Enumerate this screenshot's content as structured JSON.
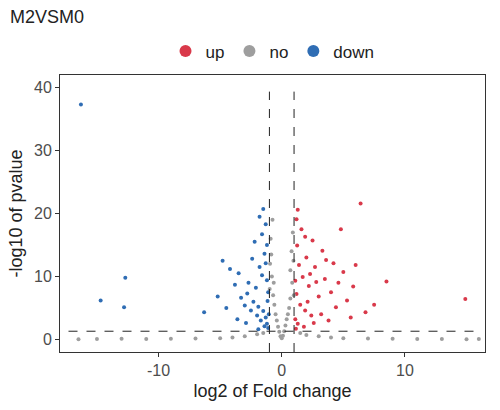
{
  "chart_data": {
    "type": "scatter",
    "title": "M2VSM0",
    "x_label": "log2 of Fold change",
    "y_label": "-log10 of pvalue",
    "xlim": [
      -18,
      16.5
    ],
    "ylim": [
      -2,
      42
    ],
    "xticks": [
      -10,
      0,
      10
    ],
    "yticks": [
      0,
      10,
      20,
      30,
      40
    ],
    "grid": false,
    "legend": "top",
    "marker": "circle",
    "thresholds": {
      "x": [
        -1,
        1
      ],
      "y": 1.3
    },
    "series": [
      {
        "name": "up",
        "color": "#d9394a",
        "x": [
          14.9,
          6.4,
          4.8,
          8.5,
          6.8,
          5.8,
          5.0,
          4.2,
          3.3,
          2.5,
          1.3,
          1.6,
          1.2,
          2.0,
          2.7,
          3.5,
          4.0,
          3.0,
          2.2,
          1.7,
          1.4,
          1.2,
          1.5,
          1.9,
          2.4,
          3.2,
          4.4,
          5.3,
          1.1,
          1.3,
          1.8,
          2.6,
          3.8,
          1.15,
          2.1,
          2.8,
          3.6,
          7.5,
          5.6,
          6.0,
          1.25,
          1.9,
          1.1,
          4.6,
          2.3
        ],
        "y": [
          6.4,
          21.6,
          17.5,
          9.2,
          4.3,
          8.4,
          10.7,
          12.1,
          14.1,
          15.7,
          20.6,
          17.5,
          19.1,
          13.0,
          11.5,
          9.6,
          7.5,
          6.8,
          8.5,
          9.9,
          11.8,
          7.2,
          5.5,
          4.6,
          3.8,
          4.0,
          5.1,
          6.2,
          3.2,
          2.5,
          2.0,
          2.6,
          3.0,
          1.7,
          6.0,
          9.1,
          12.6,
          5.5,
          3.5,
          11.8,
          14.9,
          16.3,
          9.3,
          9.0,
          10.4
        ]
      },
      {
        "name": "no",
        "color": "#9e9e9e",
        "x": [
          -16.5,
          -15,
          -13,
          -11,
          -9,
          -7,
          -5,
          -4,
          -3,
          -2,
          -1.5,
          1.5,
          2,
          3,
          4,
          5,
          7,
          9,
          11,
          13,
          15,
          16,
          -0.9,
          -0.95,
          -0.8,
          -0.7,
          -0.5,
          -0.3,
          -0.1,
          0,
          0.1,
          0.3,
          0.5,
          0.7,
          0.85,
          0.95,
          0.9,
          -0.85,
          -0.6,
          0.6,
          -0.4,
          0.4,
          -0.2,
          0.2,
          -0.98,
          0.98,
          0.8,
          -0.75,
          0.7,
          -0.65
        ],
        "y": [
          0.02,
          0.05,
          0.1,
          0.08,
          0.1,
          0.15,
          0.2,
          0.3,
          0.5,
          0.8,
          1.0,
          1.0,
          0.7,
          0.5,
          0.3,
          0.2,
          0.15,
          0.1,
          0.08,
          0.05,
          0.03,
          0.05,
          16,
          12,
          10,
          7,
          4,
          2,
          0.5,
          0.2,
          0.6,
          2.2,
          4,
          6.5,
          9,
          12.5,
          17,
          13.5,
          5.5,
          5,
          3,
          3.2,
          1.2,
          1.3,
          8,
          7,
          14,
          19,
          11,
          9
        ]
      },
      {
        "name": "down",
        "color": "#2f6db4",
        "x": [
          -16.3,
          -12.7,
          -14.7,
          -12.8,
          -6.3,
          -4.8,
          -4.2,
          -3.5,
          -3.8,
          -2.7,
          -2.2,
          -1.8,
          -1.5,
          -1.3,
          -1.6,
          -1.2,
          -2.8,
          -2.3,
          -1.9,
          -1.5,
          -1.3,
          -1.2,
          -1.1,
          -1.4,
          -1.7,
          -2.0,
          -2.5,
          -3.0,
          -3.3,
          -2.1,
          -1.6,
          -1.3,
          -1.1,
          -1.2,
          -4.5,
          -5.2,
          -1.4,
          -1.8,
          -2.4,
          -1.05,
          -1.15,
          -2.9,
          -3.6,
          -1.9
        ],
        "y": [
          37.3,
          9.8,
          6.2,
          5.1,
          4.3,
          12.5,
          11.2,
          10.5,
          8.7,
          9.0,
          15.5,
          19.5,
          20.7,
          18.3,
          16.7,
          15.0,
          7.3,
          6.0,
          5.2,
          4.5,
          3.5,
          2.5,
          1.8,
          2.1,
          3.0,
          3.8,
          4.6,
          5.4,
          6.6,
          8.2,
          10.2,
          12.1,
          7.5,
          9.4,
          5.0,
          6.8,
          13.6,
          11.5,
          12.8,
          4.0,
          6.1,
          2.6,
          3.2,
          1.6
        ]
      }
    ]
  }
}
